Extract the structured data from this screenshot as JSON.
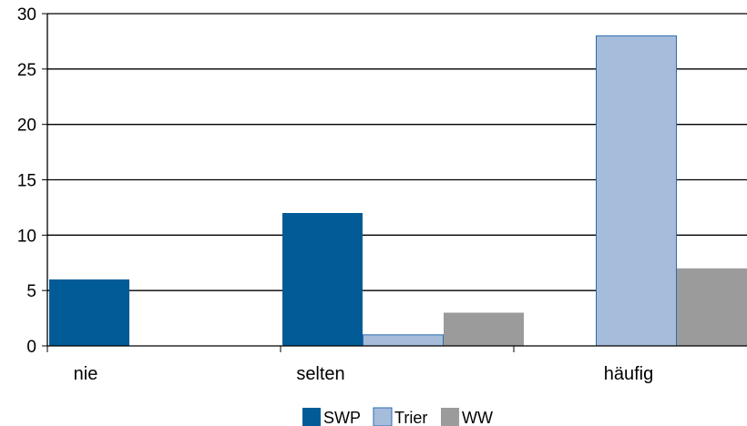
{
  "chart_data": {
    "type": "bar",
    "categories": [
      "nie",
      "selten",
      "häufig"
    ],
    "series": [
      {
        "name": "SWP",
        "values": [
          6,
          12,
          0
        ]
      },
      {
        "name": "Trier",
        "values": [
          0,
          1,
          28
        ]
      },
      {
        "name": "WW",
        "values": [
          0,
          3,
          7
        ]
      }
    ],
    "title": "",
    "xlabel": "",
    "ylabel": "",
    "ylim": [
      0,
      30
    ],
    "yticks": [
      0,
      5,
      10,
      15,
      20,
      25,
      30
    ],
    "grid": "horizontal",
    "legend_position": "bottom",
    "colors": {
      "SWP": "#005b96",
      "Trier": "#a6bcdb",
      "WW": "#9b9b9b",
      "trier_border": "#2b6cb0"
    }
  }
}
